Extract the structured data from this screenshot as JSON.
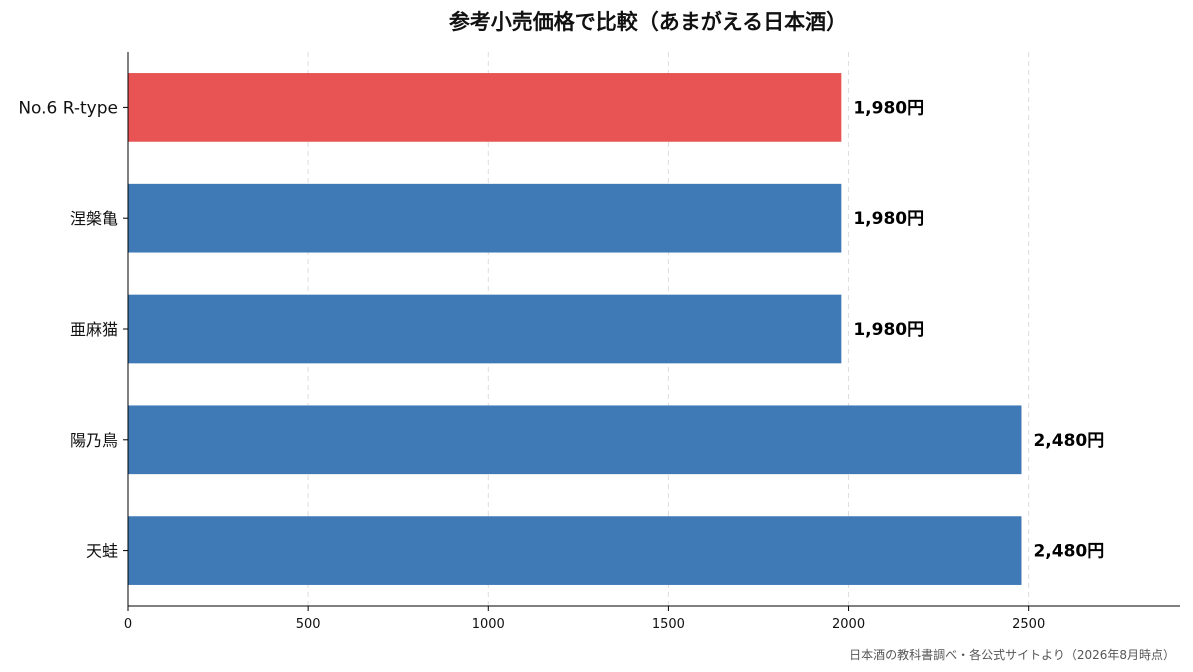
{
  "chart_data": {
    "type": "bar",
    "orientation": "horizontal",
    "title": "参考小売価格で比較（あまがえる日本酒）",
    "categories": [
      "No.6 R-type",
      "涅槃亀",
      "亜麻猫",
      "陽乃鳥",
      "天蛙"
    ],
    "values": [
      1980,
      1980,
      1980,
      2480,
      2480
    ],
    "data_labels": [
      "1,980円",
      "1,980円",
      "1,980円",
      "2,480円",
      "2,480円"
    ],
    "xlim": [
      0,
      2920
    ],
    "x_ticks": [
      0,
      500,
      1000,
      1500,
      2000,
      2500
    ],
    "x_tick_labels": [
      "0",
      "500",
      "1000",
      "1500",
      "2000",
      "2500"
    ],
    "xlabel": "",
    "ylabel": "",
    "grid": "vertical dashed",
    "highlight_index": 0,
    "colors": {
      "highlight": "#e85353",
      "default": "#3f79b6",
      "grid": "#dddddd",
      "axis": "#000000"
    },
    "source": "日本酒の教科書調べ・各公式サイトより（2026年8月時点）"
  }
}
